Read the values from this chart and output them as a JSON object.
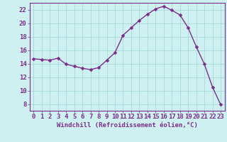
{
  "x": [
    0,
    1,
    2,
    3,
    4,
    5,
    6,
    7,
    8,
    9,
    10,
    11,
    12,
    13,
    14,
    15,
    16,
    17,
    18,
    19,
    20,
    21,
    22,
    23
  ],
  "y": [
    14.7,
    14.6,
    14.5,
    14.8,
    13.9,
    13.6,
    13.3,
    13.1,
    13.4,
    14.5,
    15.6,
    18.2,
    19.3,
    20.4,
    21.3,
    22.1,
    22.5,
    21.9,
    21.2,
    19.3,
    16.5,
    13.9,
    10.5,
    7.9
  ],
  "line_color": "#7b2d8b",
  "marker_color": "#7b2d8b",
  "bg_color": "#cff0f0",
  "grid_color": "#a8d8d8",
  "axis_color": "#7b2d8b",
  "xlabel": "Windchill (Refroidissement éolien,°C)",
  "ylim": [
    7,
    23
  ],
  "xlim": [
    -0.5,
    23.5
  ],
  "yticks": [
    8,
    10,
    12,
    14,
    16,
    18,
    20,
    22
  ],
  "xticks": [
    0,
    1,
    2,
    3,
    4,
    5,
    6,
    7,
    8,
    9,
    10,
    11,
    12,
    13,
    14,
    15,
    16,
    17,
    18,
    19,
    20,
    21,
    22,
    23
  ],
  "xlabel_fontsize": 6.5,
  "tick_fontsize": 6.5,
  "line_width": 1.0,
  "marker_size": 2.5
}
